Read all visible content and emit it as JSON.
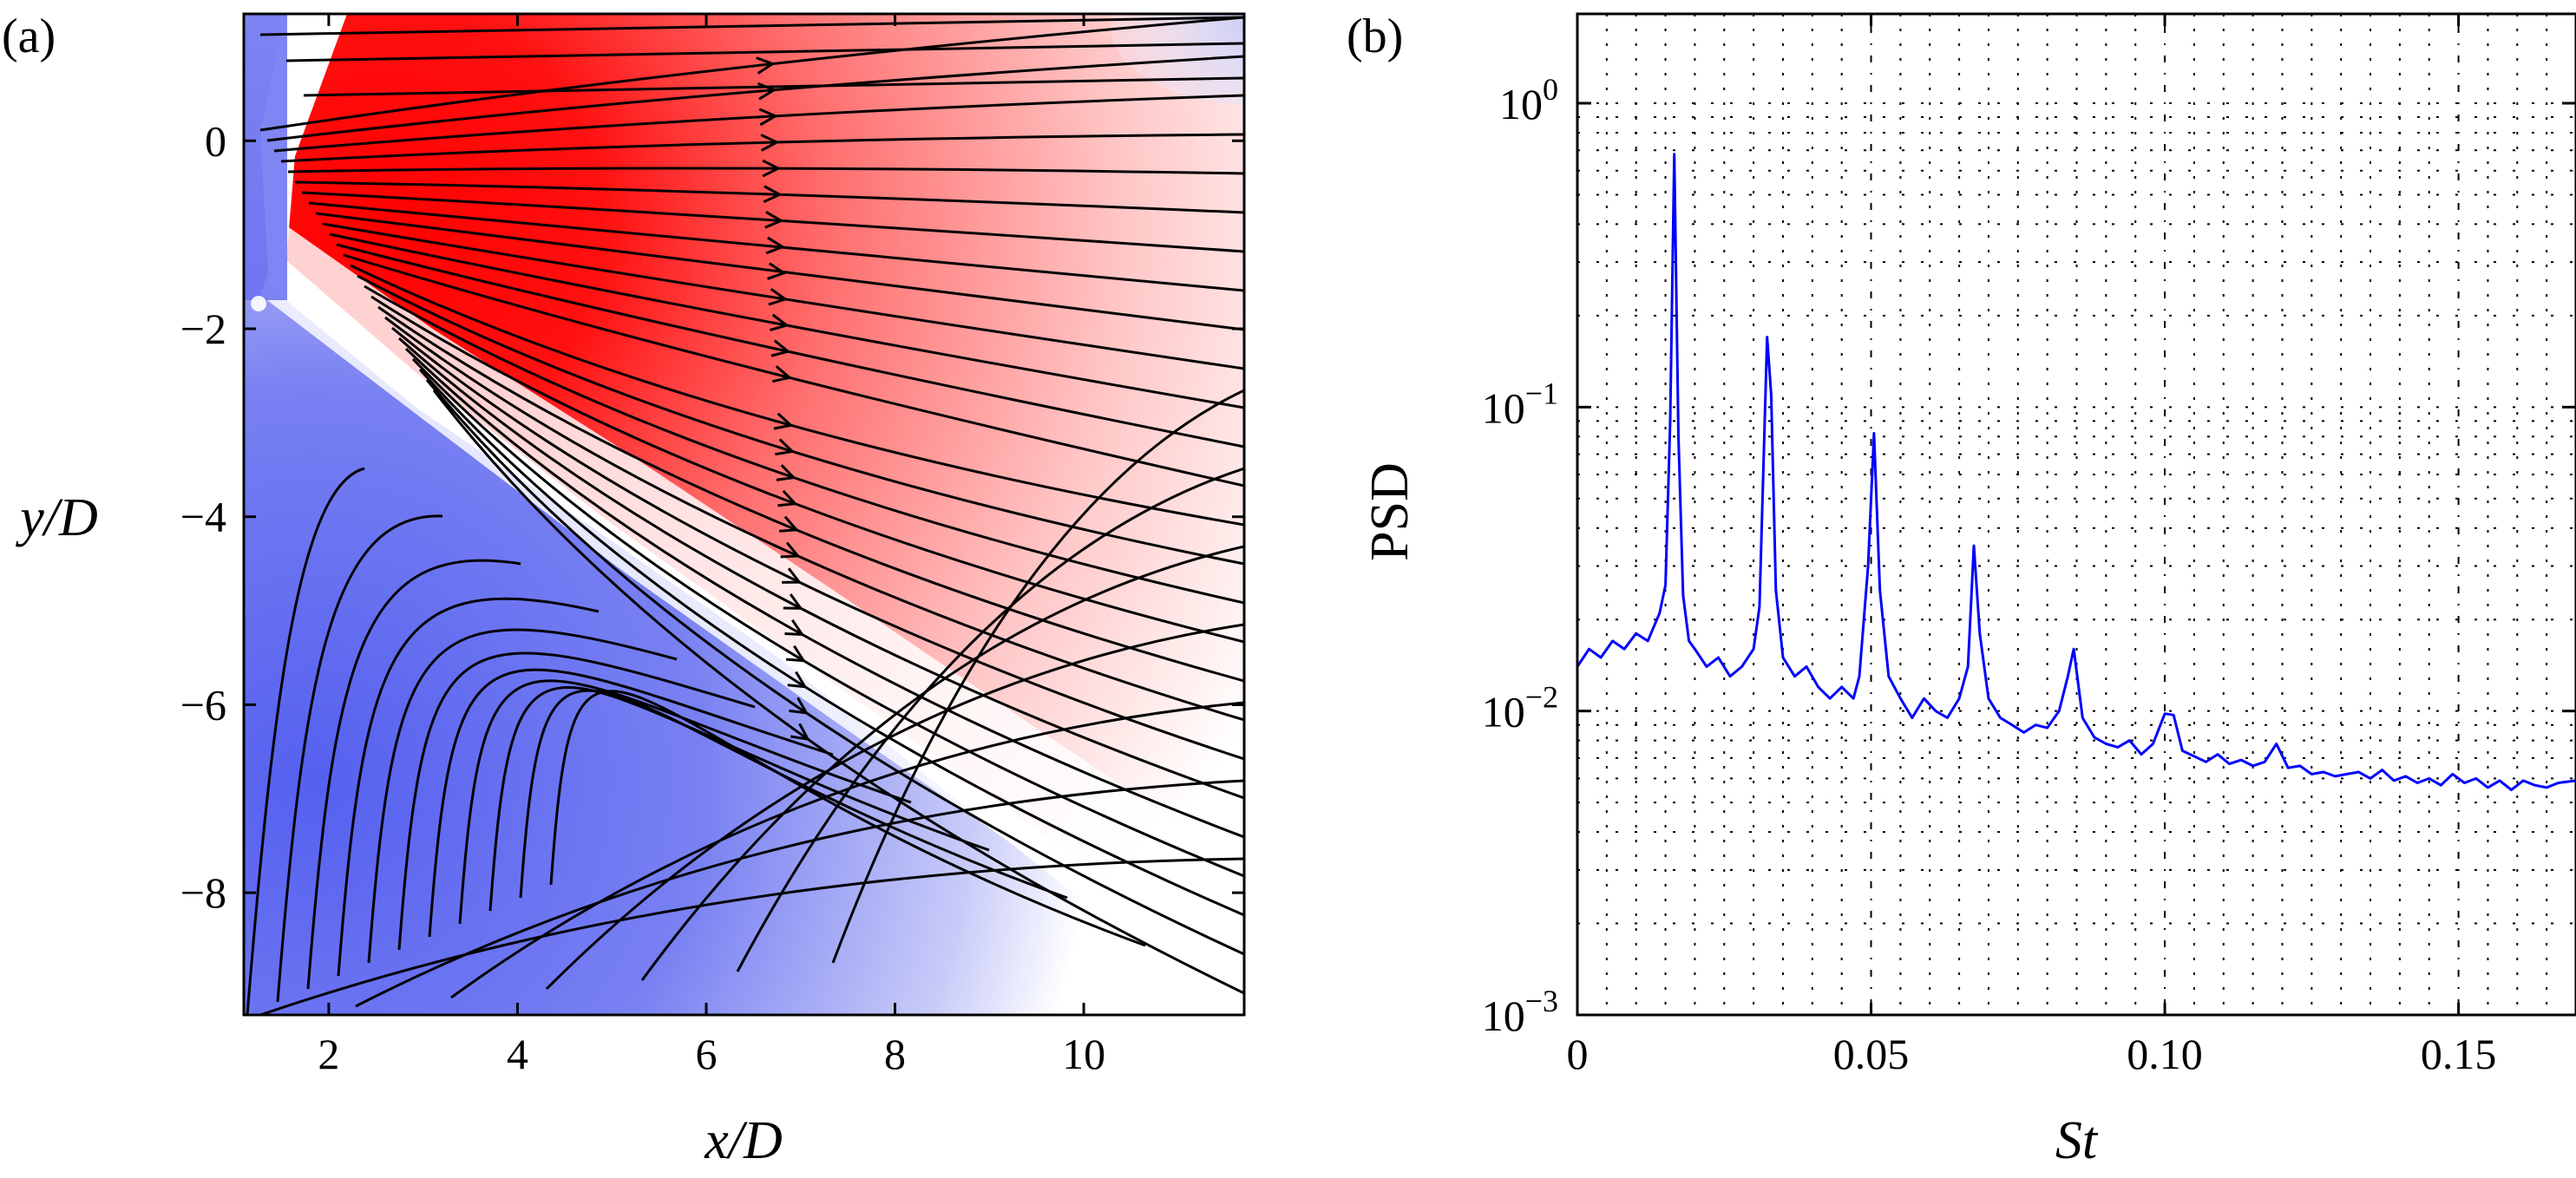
{
  "chart_data": [
    {
      "panel": "a",
      "panel_label": "(a)",
      "type": "heatmap",
      "subtype": "contour field with streamlines",
      "xlabel": "x/D",
      "ylabel": "y/D",
      "xlim": [
        1.1,
        11.7
      ],
      "ylim": [
        -9.3,
        1.35
      ],
      "xticks": [
        2,
        4,
        6,
        8,
        10
      ],
      "xtick_labels": [
        "2",
        "4",
        "6",
        "8",
        "10"
      ],
      "yticks": [
        0,
        -2,
        -4,
        -6,
        -8
      ],
      "ytick_labels": [
        "0",
        "−2",
        "−4",
        "−6",
        "−8"
      ],
      "colors": {
        "positive": "#ff0000",
        "neutral": "#ffffff",
        "negative": "#5a64f0",
        "streamline": "#000000"
      },
      "field_description": "jet core (red) fanning out from near x/D≈2.5, y/D≈-1; blue region below the shear layer; white band along y/D ≈ -0.7 x/D"
    },
    {
      "panel": "b",
      "panel_label": "(b)",
      "type": "line",
      "yscale": "log",
      "xlabel": "St",
      "ylabel": "PSD",
      "xlim": [
        0,
        0.17
      ],
      "ylim": [
        0.001,
        2
      ],
      "xticks": [
        0,
        0.05,
        0.1,
        0.15
      ],
      "xtick_labels": [
        "0",
        "0.05",
        "0.10",
        "0.15"
      ],
      "yticks": [
        0.001,
        0.01,
        0.1,
        1
      ],
      "ytick_labels": [
        {
          "base": "10",
          "exp": "−3"
        },
        {
          "base": "10",
          "exp": "−2"
        },
        {
          "base": "10",
          "exp": "−1"
        },
        {
          "base": "10",
          "exp": "0"
        }
      ],
      "grid": "dotted",
      "line_color": "#0000ff",
      "series": [
        {
          "name": "PSD",
          "x": [
            0,
            0.002,
            0.004,
            0.006,
            0.008,
            0.01,
            0.012,
            0.014,
            0.015,
            0.0158,
            0.0165,
            0.0172,
            0.018,
            0.019,
            0.02,
            0.022,
            0.024,
            0.026,
            0.028,
            0.03,
            0.031,
            0.0323,
            0.033,
            0.0338,
            0.035,
            0.037,
            0.039,
            0.041,
            0.043,
            0.045,
            0.047,
            0.048,
            0.0495,
            0.0505,
            0.0515,
            0.053,
            0.055,
            0.057,
            0.059,
            0.061,
            0.063,
            0.065,
            0.0665,
            0.0675,
            0.0685,
            0.07,
            0.072,
            0.074,
            0.076,
            0.078,
            0.08,
            0.082,
            0.0835,
            0.0845,
            0.086,
            0.088,
            0.09,
            0.092,
            0.094,
            0.096,
            0.098,
            0.1,
            0.1015,
            0.103,
            0.105,
            0.107,
            0.109,
            0.111,
            0.113,
            0.115,
            0.117,
            0.119,
            0.121,
            0.123,
            0.125,
            0.127,
            0.129,
            0.131,
            0.133,
            0.135,
            0.137,
            0.139,
            0.141,
            0.143,
            0.145,
            0.147,
            0.149,
            0.151,
            0.153,
            0.155,
            0.157,
            0.159,
            0.161,
            0.163,
            0.165,
            0.167,
            0.17
          ],
          "y": [
            0.014,
            0.016,
            0.015,
            0.017,
            0.016,
            0.018,
            0.017,
            0.021,
            0.026,
            0.09,
            0.68,
            0.08,
            0.024,
            0.017,
            0.016,
            0.014,
            0.015,
            0.013,
            0.014,
            0.016,
            0.022,
            0.17,
            0.11,
            0.025,
            0.015,
            0.013,
            0.014,
            0.012,
            0.011,
            0.012,
            0.011,
            0.013,
            0.03,
            0.082,
            0.025,
            0.013,
            0.011,
            0.0095,
            0.011,
            0.01,
            0.0095,
            0.011,
            0.014,
            0.035,
            0.018,
            0.011,
            0.0095,
            0.009,
            0.0085,
            0.009,
            0.0088,
            0.01,
            0.013,
            0.016,
            0.0095,
            0.0082,
            0.0078,
            0.0076,
            0.008,
            0.0072,
            0.0078,
            0.0098,
            0.0097,
            0.0074,
            0.0071,
            0.0068,
            0.0072,
            0.0067,
            0.0069,
            0.0066,
            0.0068,
            0.0078,
            0.0065,
            0.0066,
            0.0062,
            0.0063,
            0.0061,
            0.0062,
            0.0063,
            0.006,
            0.0064,
            0.0059,
            0.0061,
            0.0058,
            0.006,
            0.0057,
            0.0062,
            0.0058,
            0.006,
            0.0056,
            0.0059,
            0.0055,
            0.0059,
            0.0057,
            0.0056,
            0.0058,
            0.0059
          ]
        }
      ]
    }
  ]
}
